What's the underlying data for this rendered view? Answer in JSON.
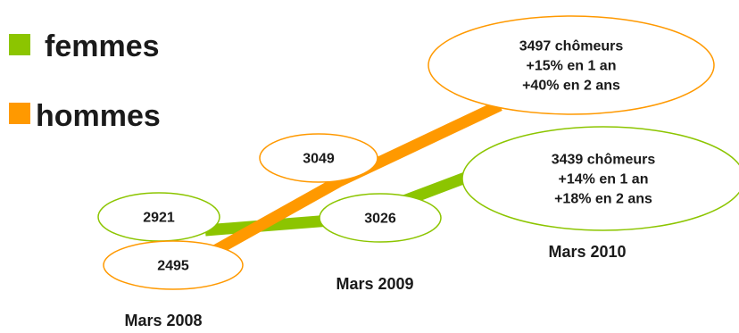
{
  "colors": {
    "femmes": "#8cc500",
    "hommes": "#ff9900"
  },
  "chart_data": {
    "type": "line",
    "x": [
      "Mars 2008",
      "Mars 2009",
      "Mars 2010"
    ],
    "series": [
      {
        "name": "femmes",
        "values": [
          2921,
          3026,
          3439
        ]
      },
      {
        "name": "hommes",
        "values": [
          2495,
          3049,
          3497
        ]
      }
    ],
    "labels": {
      "femmes": [
        "2921",
        "3026",
        [
          "3439 chômeurs",
          "+14% en 1 an",
          "+18% en 2 ans"
        ]
      ],
      "hommes": [
        "2495",
        "3049",
        [
          "3497 chômeurs",
          "+15% en 1 an",
          "+40% en 2 ans"
        ]
      ]
    },
    "legend_position": "top-left",
    "grid": false
  }
}
